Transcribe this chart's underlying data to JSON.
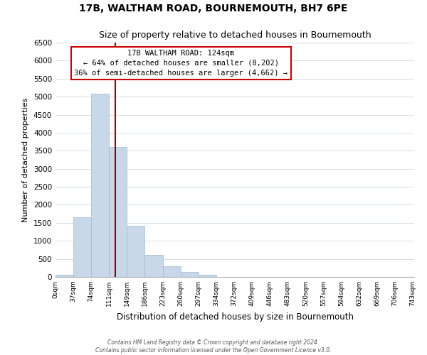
{
  "title": "17B, WALTHAM ROAD, BOURNEMOUTH, BH7 6PE",
  "subtitle": "Size of property relative to detached houses in Bournemouth",
  "xlabel": "Distribution of detached houses by size in Bournemouth",
  "ylabel": "Number of detached properties",
  "bin_labels": [
    "0sqm",
    "37sqm",
    "74sqm",
    "111sqm",
    "149sqm",
    "186sqm",
    "223sqm",
    "260sqm",
    "297sqm",
    "334sqm",
    "372sqm",
    "409sqm",
    "446sqm",
    "483sqm",
    "520sqm",
    "557sqm",
    "594sqm",
    "632sqm",
    "669sqm",
    "706sqm",
    "743sqm"
  ],
  "bar_heights": [
    50,
    1650,
    5080,
    3600,
    1420,
    610,
    300,
    145,
    55,
    0,
    0,
    0,
    0,
    0,
    0,
    0,
    0,
    0,
    0,
    0
  ],
  "bar_color": "#c8d8e8",
  "bar_edge_color": "#a0b8cc",
  "grid_color": "#d0d8e0",
  "property_line_x": 124,
  "property_line_color": "#990000",
  "annotation_title": "17B WALTHAM ROAD: 124sqm",
  "annotation_line1": "← 64% of detached houses are smaller (8,202)",
  "annotation_line2": "36% of semi-detached houses are larger (4,662) →",
  "annotation_box_color": "#ffffff",
  "annotation_box_edge": "#cc0000",
  "ylim": [
    0,
    6500
  ],
  "yticks": [
    0,
    500,
    1000,
    1500,
    2000,
    2500,
    3000,
    3500,
    4000,
    4500,
    5000,
    5500,
    6000,
    6500
  ],
  "footer_line1": "Contains HM Land Registry data © Crown copyright and database right 2024.",
  "footer_line2": "Contains public sector information licensed under the Open Government Licence v3.0.",
  "bin_width": 37
}
